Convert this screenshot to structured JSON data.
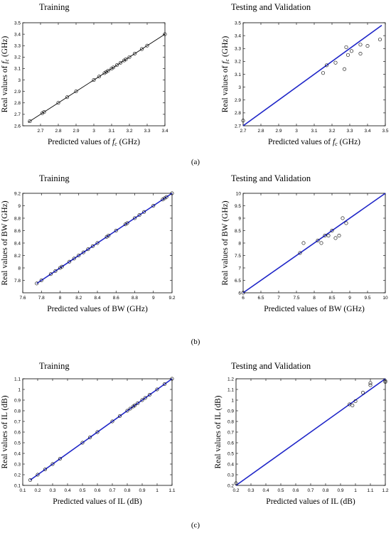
{
  "figure": {
    "captions": [
      "(a)",
      "(b)",
      "(c)"
    ]
  },
  "colors": {
    "black_line": "#000000",
    "blue_line": "#1f26c8",
    "marker": "#000000",
    "frame": "#000000"
  },
  "chart_data": [
    {
      "type": "scatter",
      "title": "Training",
      "xlabel": "Predicted values of  f_c (GHz)",
      "ylabel": "Real values of  f_c (GHz)",
      "xlim": [
        2.6,
        3.4
      ],
      "ylim": [
        2.6,
        3.5
      ],
      "xticks": [
        2.7,
        2.8,
        2.9,
        3.0,
        3.1,
        3.2,
        3.3,
        3.4
      ],
      "xtick_labels": [
        "2.7",
        "2.8",
        "2.9",
        "3",
        "3.1",
        "3.2",
        "3.3",
        "3.4"
      ],
      "yticks": [
        2.6,
        2.7,
        2.8,
        2.9,
        3.0,
        3.1,
        3.2,
        3.3,
        3.4,
        3.5
      ],
      "ytick_labels": [
        "2.6",
        "2.7",
        "2.8",
        "2.9",
        "3",
        "3.1",
        "3.2",
        "3.3",
        "3.4",
        "3.5"
      ],
      "reference_line": {
        "from": [
          2.63,
          2.63
        ],
        "to": [
          3.4,
          3.4
        ],
        "color": "#000000"
      },
      "points": [
        [
          2.64,
          2.64
        ],
        [
          2.71,
          2.71
        ],
        [
          2.72,
          2.72
        ],
        [
          2.8,
          2.8
        ],
        [
          2.85,
          2.85
        ],
        [
          2.9,
          2.9
        ],
        [
          3.0,
          3.0
        ],
        [
          3.03,
          3.03
        ],
        [
          3.06,
          3.06
        ],
        [
          3.07,
          3.07
        ],
        [
          3.08,
          3.08
        ],
        [
          3.1,
          3.1
        ],
        [
          3.11,
          3.11
        ],
        [
          3.13,
          3.13
        ],
        [
          3.15,
          3.15
        ],
        [
          3.17,
          3.17
        ],
        [
          3.18,
          3.18
        ],
        [
          3.2,
          3.2
        ],
        [
          3.23,
          3.23
        ],
        [
          3.27,
          3.27
        ],
        [
          3.3,
          3.3
        ],
        [
          3.4,
          3.4
        ]
      ],
      "grid": false
    },
    {
      "type": "scatter",
      "title": "Testing and Validation",
      "xlabel": "Predicted values of  f_c (GHz)",
      "ylabel": "Real values of  f_c (GHz)",
      "xlim": [
        2.7,
        3.5
      ],
      "ylim": [
        2.7,
        3.5
      ],
      "xticks": [
        2.7,
        2.8,
        2.9,
        3.0,
        3.1,
        3.2,
        3.3,
        3.4,
        3.5
      ],
      "xtick_labels": [
        "2.7",
        "2.8",
        "2.9",
        "3",
        "3.1",
        "3.2",
        "3.3",
        "3.4",
        "3.5"
      ],
      "yticks": [
        2.7,
        2.8,
        2.9,
        3.0,
        3.1,
        3.2,
        3.3,
        3.4,
        3.5
      ],
      "ytick_labels": [
        "2.7",
        "2.8",
        "2.9",
        "3",
        "3.1",
        "3.2",
        "3.3",
        "3.4",
        "3.5"
      ],
      "reference_line": {
        "from": [
          2.7,
          2.7
        ],
        "to": [
          3.48,
          3.48
        ],
        "color": "#1f26c8"
      },
      "points": [
        [
          2.7,
          2.74
        ],
        [
          3.15,
          3.11
        ],
        [
          3.17,
          3.17
        ],
        [
          3.22,
          3.19
        ],
        [
          3.27,
          3.14
        ],
        [
          3.28,
          3.31
        ],
        [
          3.29,
          3.25
        ],
        [
          3.31,
          3.28
        ],
        [
          3.36,
          3.26
        ],
        [
          3.36,
          3.33
        ],
        [
          3.4,
          3.32
        ],
        [
          3.47,
          3.37
        ]
      ],
      "grid": false
    },
    {
      "type": "scatter",
      "title": "Training",
      "xlabel": "Predicted values of  BW (GHz)",
      "ylabel": "Real values of  BW (GHz)",
      "xlim": [
        7.6,
        9.2
      ],
      "ylim": [
        7.6,
        9.2
      ],
      "xticks": [
        7.6,
        7.8,
        8.0,
        8.2,
        8.4,
        8.6,
        8.8,
        9.0,
        9.2
      ],
      "xtick_labels": [
        "7.6",
        "7.8",
        "8",
        "8.2",
        "8.4",
        "8.6",
        "8.8",
        "9",
        "9.2"
      ],
      "yticks": [
        7.8,
        8.0,
        8.2,
        8.4,
        8.6,
        8.8,
        9.0,
        9.2
      ],
      "ytick_labels": [
        "7.8",
        "8",
        "8.2",
        "8.4",
        "8.6",
        "8.8",
        "9",
        "9.2"
      ],
      "reference_line": {
        "from": [
          7.75,
          7.75
        ],
        "to": [
          9.2,
          9.2
        ],
        "color": "#1f26c8"
      },
      "points": [
        [
          7.75,
          7.75
        ],
        [
          7.8,
          7.8
        ],
        [
          7.9,
          7.9
        ],
        [
          7.95,
          7.95
        ],
        [
          8.0,
          8.0
        ],
        [
          8.02,
          8.02
        ],
        [
          8.1,
          8.1
        ],
        [
          8.15,
          8.15
        ],
        [
          8.2,
          8.2
        ],
        [
          8.25,
          8.25
        ],
        [
          8.3,
          8.3
        ],
        [
          8.35,
          8.35
        ],
        [
          8.4,
          8.4
        ],
        [
          8.5,
          8.5
        ],
        [
          8.52,
          8.52
        ],
        [
          8.6,
          8.6
        ],
        [
          8.7,
          8.7
        ],
        [
          8.72,
          8.72
        ],
        [
          8.8,
          8.8
        ],
        [
          8.85,
          8.85
        ],
        [
          8.9,
          8.9
        ],
        [
          9.0,
          9.0
        ],
        [
          9.1,
          9.1
        ],
        [
          9.12,
          9.12
        ],
        [
          9.14,
          9.14
        ],
        [
          9.2,
          9.2
        ]
      ],
      "grid": false
    },
    {
      "type": "scatter",
      "title": "Testing and Validation",
      "xlabel": "Predicted values of  BW (GHz)",
      "ylabel": "Real values of  BW (GHz)",
      "xlim": [
        6,
        10
      ],
      "ylim": [
        6,
        10
      ],
      "xticks": [
        6,
        6.5,
        7,
        7.5,
        8,
        8.5,
        9,
        9.5,
        10
      ],
      "xtick_labels": [
        "6",
        "6.5",
        "7",
        "7.5",
        "8",
        "8.5",
        "9",
        "9.5",
        "10"
      ],
      "yticks": [
        6,
        6.5,
        7,
        7.5,
        8,
        8.5,
        9,
        9.5,
        10
      ],
      "ytick_labels": [
        "6",
        "6.5",
        "7",
        "7.5",
        "8",
        "8.5",
        "9",
        "9.5",
        "10"
      ],
      "reference_line": {
        "from": [
          6,
          6
        ],
        "to": [
          10,
          10
        ],
        "color": "#1f26c8"
      },
      "points": [
        [
          6.0,
          6.0
        ],
        [
          7.6,
          7.6
        ],
        [
          7.7,
          8.0
        ],
        [
          8.1,
          8.1
        ],
        [
          8.2,
          8.0
        ],
        [
          8.3,
          8.3
        ],
        [
          8.4,
          8.3
        ],
        [
          8.5,
          8.5
        ],
        [
          8.6,
          8.2
        ],
        [
          8.7,
          8.3
        ],
        [
          8.8,
          9.0
        ],
        [
          8.9,
          8.8
        ]
      ],
      "grid": false
    },
    {
      "type": "scatter",
      "title": "Training",
      "xlabel": "Predicted values of  IL (dB)",
      "ylabel": "Real values of  IL (dB)",
      "xlim": [
        0.1,
        1.1
      ],
      "ylim": [
        0.1,
        1.1
      ],
      "xticks": [
        0.1,
        0.2,
        0.3,
        0.4,
        0.5,
        0.6,
        0.7,
        0.8,
        0.9,
        1.0,
        1.1
      ],
      "xtick_labels": [
        "0.1",
        "0.2",
        "0.3",
        "0.4",
        "0.5",
        "0.6",
        "0.7",
        "0.8",
        "0.9",
        "1",
        "1.1"
      ],
      "yticks": [
        0.1,
        0.2,
        0.3,
        0.4,
        0.5,
        0.6,
        0.7,
        0.8,
        0.9,
        1.0,
        1.1
      ],
      "ytick_labels": [
        "0.1",
        "0.2",
        "0.3",
        "0.4",
        "0.5",
        "0.6",
        "0.7",
        "0.8",
        "0.9",
        "1",
        "1.1"
      ],
      "reference_line": {
        "from": [
          0.15,
          0.15
        ],
        "to": [
          1.1,
          1.1
        ],
        "color": "#1f26c8"
      },
      "points": [
        [
          0.15,
          0.15
        ],
        [
          0.2,
          0.2
        ],
        [
          0.25,
          0.25
        ],
        [
          0.3,
          0.3
        ],
        [
          0.35,
          0.35
        ],
        [
          0.5,
          0.5
        ],
        [
          0.55,
          0.55
        ],
        [
          0.6,
          0.6
        ],
        [
          0.7,
          0.7
        ],
        [
          0.75,
          0.75
        ],
        [
          0.8,
          0.8
        ],
        [
          0.82,
          0.82
        ],
        [
          0.84,
          0.84
        ],
        [
          0.85,
          0.85
        ],
        [
          0.87,
          0.87
        ],
        [
          0.9,
          0.9
        ],
        [
          0.92,
          0.92
        ],
        [
          0.95,
          0.95
        ],
        [
          1.0,
          1.0
        ],
        [
          1.05,
          1.05
        ],
        [
          1.1,
          1.1
        ]
      ],
      "grid": false
    },
    {
      "type": "scatter",
      "title": "Testing and Validation",
      "xlabel": "Predicted values of  IL (dB)",
      "ylabel": "Real values of  IL (dB)",
      "xlim": [
        0.2,
        1.2
      ],
      "ylim": [
        0.2,
        1.2
      ],
      "xticks": [
        0.2,
        0.3,
        0.4,
        0.5,
        0.6,
        0.7,
        0.8,
        0.9,
        1.0,
        1.1,
        1.2
      ],
      "xtick_labels": [
        "0.2",
        "0.3",
        "0.4",
        "0.5",
        "0.6",
        "0.7",
        "0.8",
        "0.9",
        "1",
        "1.1",
        "1.2"
      ],
      "yticks": [
        0.2,
        0.3,
        0.4,
        0.5,
        0.6,
        0.7,
        0.8,
        0.9,
        1.0,
        1.1,
        1.2
      ],
      "ytick_labels": [
        "0.2",
        "0.3",
        "0.4",
        "0.5",
        "0.6",
        "0.7",
        "0.8",
        "0.9",
        "1",
        "1.1",
        "1.2"
      ],
      "reference_line": {
        "from": [
          0.2,
          0.2
        ],
        "to": [
          1.2,
          1.2
        ],
        "color": "#1f26c8"
      },
      "points": [
        [
          0.2,
          0.22
        ],
        [
          0.96,
          0.96
        ],
        [
          0.98,
          0.95
        ],
        [
          1.0,
          0.99
        ],
        [
          1.05,
          1.07
        ],
        [
          1.1,
          1.14
        ],
        [
          1.1,
          1.16
        ],
        [
          1.2,
          1.17
        ],
        [
          1.2,
          1.18
        ]
      ],
      "grid": false
    }
  ]
}
